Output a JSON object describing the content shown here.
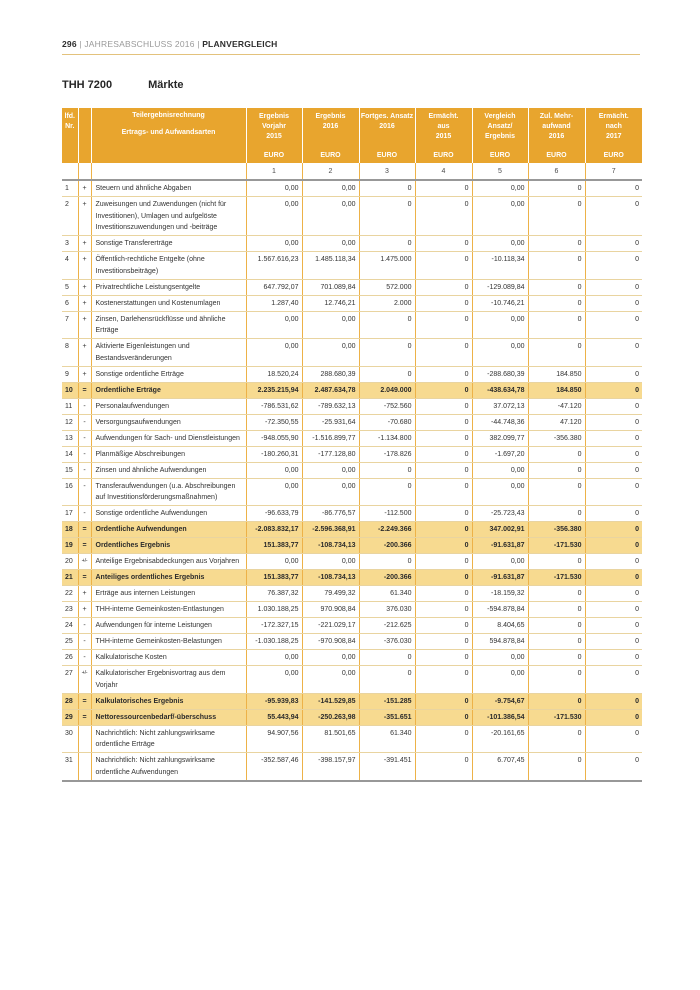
{
  "header": {
    "page_number": "296",
    "separator": "|",
    "doc_name": "JAHRESABSCHLUSS 2016",
    "section": "PLANVERGLEICH"
  },
  "title": {
    "code": "THH 7200",
    "name": "Märkte"
  },
  "colors": {
    "header_gold": "#e8a52e",
    "highlight_row": "#f7da90",
    "grid_gold": "#edb248",
    "row_line": "#e9d4a0",
    "gray_rule": "#989898"
  },
  "table": {
    "nr_header": "lfd.\nNr.",
    "desc_header_line1": "Teilergebnisrechnung",
    "desc_header_line2": "Ertrags- und Aufwandsarten",
    "columns": [
      {
        "label": "Ergebnis Vorjahr\n2015",
        "unit": "EURO",
        "num": "1"
      },
      {
        "label": "Ergebnis\n2016",
        "unit": "EURO",
        "num": "2"
      },
      {
        "label": "Fortges. Ansatz\n2016",
        "unit": "EURO",
        "num": "3"
      },
      {
        "label": "Ermächt.\naus\n2015",
        "unit": "EURO",
        "num": "4"
      },
      {
        "label": "Vergleich\nAnsatz/\nErgebnis",
        "unit": "EURO",
        "num": "5"
      },
      {
        "label": "Zul. Mehr-\naufwand\n2016",
        "unit": "EURO",
        "num": "6"
      },
      {
        "label": "Ermächt.\nnach\n2017",
        "unit": "EURO",
        "num": "7"
      }
    ],
    "rows": [
      {
        "nr": "1",
        "sign": "+",
        "desc": "Steuern und ähnliche Abgaben",
        "highlight": false,
        "values": [
          "0,00",
          "0,00",
          "0",
          "0",
          "0,00",
          "0",
          "0"
        ]
      },
      {
        "nr": "2",
        "sign": "+",
        "desc": "Zuweisungen und Zuwendungen (nicht für Investitionen), Umlagen und aufgelöste Investitionszuwendungen und -beiträge",
        "highlight": false,
        "values": [
          "0,00",
          "0,00",
          "0",
          "0",
          "0,00",
          "0",
          "0"
        ]
      },
      {
        "nr": "3",
        "sign": "+",
        "desc": "Sonstige Transfererträge",
        "highlight": false,
        "values": [
          "0,00",
          "0,00",
          "0",
          "0",
          "0,00",
          "0",
          "0"
        ]
      },
      {
        "nr": "4",
        "sign": "+",
        "desc": "Öffentlich-rechtliche Entgelte (ohne Investitionsbeiträge)",
        "highlight": false,
        "values": [
          "1.567.616,23",
          "1.485.118,34",
          "1.475.000",
          "0",
          "-10.118,34",
          "0",
          "0"
        ]
      },
      {
        "nr": "5",
        "sign": "+",
        "desc": "Privatrechtliche Leistungsentgelte",
        "highlight": false,
        "values": [
          "647.792,07",
          "701.089,84",
          "572.000",
          "0",
          "-129.089,84",
          "0",
          "0"
        ]
      },
      {
        "nr": "6",
        "sign": "+",
        "desc": "Kostenerstattungen und Kostenumlagen",
        "highlight": false,
        "values": [
          "1.287,40",
          "12.746,21",
          "2.000",
          "0",
          "-10.746,21",
          "0",
          "0"
        ]
      },
      {
        "nr": "7",
        "sign": "+",
        "desc": "Zinsen, Darlehensrückflüsse und ähnliche Erträge",
        "highlight": false,
        "values": [
          "0,00",
          "0,00",
          "0",
          "0",
          "0,00",
          "0",
          "0"
        ]
      },
      {
        "nr": "8",
        "sign": "+",
        "desc": "Aktivierte Eigenleistungen und Bestandsveränderungen",
        "highlight": false,
        "values": [
          "0,00",
          "0,00",
          "0",
          "0",
          "0,00",
          "0",
          "0"
        ]
      },
      {
        "nr": "9",
        "sign": "+",
        "desc": "Sonstige ordentliche Erträge",
        "highlight": false,
        "values": [
          "18.520,24",
          "288.680,39",
          "0",
          "0",
          "-288.680,39",
          "184.850",
          "0"
        ]
      },
      {
        "nr": "10",
        "sign": "=",
        "desc": "Ordentliche Erträge",
        "highlight": true,
        "values": [
          "2.235.215,94",
          "2.487.634,78",
          "2.049.000",
          "0",
          "-438.634,78",
          "184.850",
          "0"
        ]
      },
      {
        "nr": "11",
        "sign": "-",
        "desc": "Personalaufwendungen",
        "highlight": false,
        "values": [
          "-786.531,62",
          "-789.632,13",
          "-752.560",
          "0",
          "37.072,13",
          "-47.120",
          "0"
        ]
      },
      {
        "nr": "12",
        "sign": "-",
        "desc": "Versorgungsaufwendungen",
        "highlight": false,
        "values": [
          "-72.350,55",
          "-25.931,64",
          "-70.680",
          "0",
          "-44.748,36",
          "47.120",
          "0"
        ]
      },
      {
        "nr": "13",
        "sign": "-",
        "desc": "Aufwendungen für Sach- und Dienstleistungen",
        "highlight": false,
        "values": [
          "-948.055,90",
          "-1.516.899,77",
          "-1.134.800",
          "0",
          "382.099,77",
          "-356.380",
          "0"
        ]
      },
      {
        "nr": "14",
        "sign": "-",
        "desc": "Planmäßige Abschreibungen",
        "highlight": false,
        "values": [
          "-180.260,31",
          "-177.128,80",
          "-178.826",
          "0",
          "-1.697,20",
          "0",
          "0"
        ]
      },
      {
        "nr": "15",
        "sign": "-",
        "desc": "Zinsen und ähnliche Aufwendungen",
        "highlight": false,
        "values": [
          "0,00",
          "0,00",
          "0",
          "0",
          "0,00",
          "0",
          "0"
        ]
      },
      {
        "nr": "16",
        "sign": "-",
        "desc": "Transferaufwendungen (u.a. Abschreibungen auf Investitionsförderungsmaßnahmen)",
        "highlight": false,
        "values": [
          "0,00",
          "0,00",
          "0",
          "0",
          "0,00",
          "0",
          "0"
        ]
      },
      {
        "nr": "17",
        "sign": "-",
        "desc": "Sonstige ordentliche Aufwendungen",
        "highlight": false,
        "values": [
          "-96.633,79",
          "-86.776,57",
          "-112.500",
          "0",
          "-25.723,43",
          "0",
          "0"
        ]
      },
      {
        "nr": "18",
        "sign": "=",
        "desc": "Ordentliche Aufwendungen",
        "highlight": true,
        "values": [
          "-2.083.832,17",
          "-2.596.368,91",
          "-2.249.366",
          "0",
          "347.002,91",
          "-356.380",
          "0"
        ]
      },
      {
        "nr": "19",
        "sign": "=",
        "desc": "Ordentliches Ergebnis",
        "highlight": true,
        "values": [
          "151.383,77",
          "-108.734,13",
          "-200.366",
          "0",
          "-91.631,87",
          "-171.530",
          "0"
        ]
      },
      {
        "nr": "20",
        "sign": "+/-",
        "desc": "Anteilige Ergebnisabdeckungen aus Vorjahren",
        "highlight": false,
        "values": [
          "0,00",
          "0,00",
          "0",
          "0",
          "0,00",
          "0",
          "0"
        ]
      },
      {
        "nr": "21",
        "sign": "=",
        "desc": "Anteiliges ordentliches Ergebnis",
        "highlight": true,
        "values": [
          "151.383,77",
          "-108.734,13",
          "-200.366",
          "0",
          "-91.631,87",
          "-171.530",
          "0"
        ]
      },
      {
        "nr": "22",
        "sign": "+",
        "desc": "Erträge aus internen Leistungen",
        "highlight": false,
        "values": [
          "76.387,32",
          "79.499,32",
          "61.340",
          "0",
          "-18.159,32",
          "0",
          "0"
        ]
      },
      {
        "nr": "23",
        "sign": "+",
        "desc": "THH-interne Gemeinkosten-Entlastungen",
        "highlight": false,
        "values": [
          "1.030.188,25",
          "970.908,84",
          "376.030",
          "0",
          "-594.878,84",
          "0",
          "0"
        ]
      },
      {
        "nr": "24",
        "sign": "-",
        "desc": "Aufwendungen für interne Leistungen",
        "highlight": false,
        "values": [
          "-172.327,15",
          "-221.029,17",
          "-212.625",
          "0",
          "8.404,65",
          "0",
          "0"
        ]
      },
      {
        "nr": "25",
        "sign": "-",
        "desc": "THH-interne Gemeinkosten-Belastungen",
        "highlight": false,
        "values": [
          "-1.030.188,25",
          "-970.908,84",
          "-376.030",
          "0",
          "594.878,84",
          "0",
          "0"
        ]
      },
      {
        "nr": "26",
        "sign": "-",
        "desc": "Kalkulatorische Kosten",
        "highlight": false,
        "values": [
          "0,00",
          "0,00",
          "0",
          "0",
          "0,00",
          "0",
          "0"
        ]
      },
      {
        "nr": "27",
        "sign": "+/-",
        "desc": "Kalkulatorischer Ergebnisvortrag aus dem Vorjahr",
        "highlight": false,
        "values": [
          "0,00",
          "0,00",
          "0",
          "0",
          "0,00",
          "0",
          "0"
        ]
      },
      {
        "nr": "28",
        "sign": "=",
        "desc": "Kalkulatorisches Ergebnis",
        "highlight": true,
        "values": [
          "-95.939,83",
          "-141.529,85",
          "-151.285",
          "0",
          "-9.754,67",
          "0",
          "0"
        ]
      },
      {
        "nr": "29",
        "sign": "=",
        "desc": "Nettoressourcenbedarf/-überschuss",
        "highlight": true,
        "values": [
          "55.443,94",
          "-250.263,98",
          "-351.651",
          "0",
          "-101.386,54",
          "-171.530",
          "0"
        ]
      },
      {
        "nr": "30",
        "sign": "",
        "desc": "Nachrichtlich: Nicht zahlungswirksame ordentliche Erträge",
        "highlight": false,
        "values": [
          "94.907,56",
          "81.501,65",
          "61.340",
          "0",
          "-20.161,65",
          "0",
          "0"
        ]
      },
      {
        "nr": "31",
        "sign": "",
        "desc": "Nachrichtlich: Nicht zahlungswirksame ordentliche Aufwendungen",
        "highlight": false,
        "values": [
          "-352.587,46",
          "-398.157,97",
          "-391.451",
          "0",
          "6.707,45",
          "0",
          "0"
        ]
      }
    ]
  }
}
